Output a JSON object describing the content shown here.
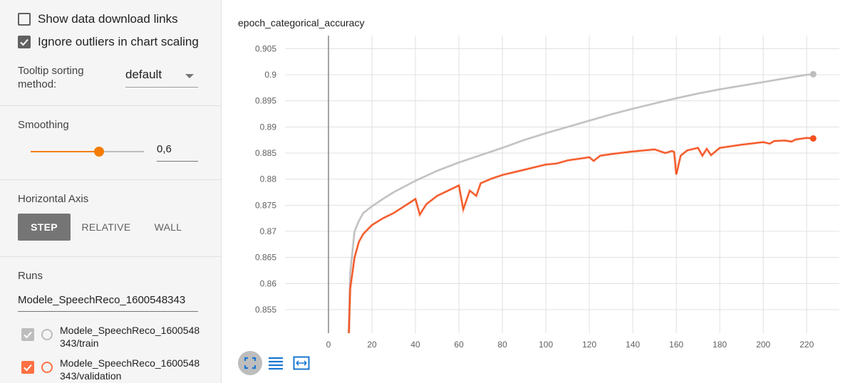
{
  "sidebar": {
    "show_download_links": {
      "label": "Show data download links",
      "checked": false
    },
    "ignore_outliers": {
      "label": "Ignore outliers in chart scaling",
      "checked": true
    },
    "tooltip_sorting": {
      "label": "Tooltip sorting method:",
      "value": "default"
    },
    "smoothing": {
      "title": "Smoothing",
      "value": "0,6",
      "level": 0.6
    },
    "horizontal_axis": {
      "title": "Horizontal Axis",
      "options": [
        "STEP",
        "RELATIVE",
        "WALL"
      ],
      "selected": "STEP"
    },
    "runs": {
      "title": "Runs",
      "filter": "Modele_SpeechReco_1600548343",
      "items": [
        {
          "label": "Modele_SpeechReco_1600548343/train",
          "checked": true,
          "color": "#9e9e9e"
        },
        {
          "label": "Modele_SpeechReco_1600548343/validation",
          "checked": true,
          "color": "#ff7043"
        }
      ]
    }
  },
  "chart": {
    "title": "epoch_categorical_accuracy"
  },
  "icons": {
    "fullscreen": "fullscreen-icon",
    "lines": "toggle-y-log-icon",
    "fit": "fit-domain-icon"
  },
  "chart_data": {
    "type": "line",
    "title": "epoch_categorical_accuracy",
    "xlabel": "",
    "ylabel": "",
    "xlim": [
      -20,
      235
    ],
    "ylim": [
      0.8505,
      0.9075
    ],
    "x_ticks": [
      0,
      20,
      40,
      60,
      80,
      100,
      120,
      140,
      160,
      180,
      200,
      220
    ],
    "y_ticks": [
      0.855,
      0.86,
      0.865,
      0.87,
      0.875,
      0.88,
      0.885,
      0.89,
      0.895,
      0.9,
      0.905
    ],
    "y_tick_labels": [
      "0.855",
      "0.86",
      "0.865",
      "0.87",
      "0.875",
      "0.88",
      "0.885",
      "0.89",
      "0.895",
      "0.9",
      "0.905"
    ],
    "grid": true,
    "series": [
      {
        "color": "#bdbdbd",
        "x": [
          9,
          10,
          12,
          14,
          16,
          20,
          25,
          30,
          40,
          50,
          60,
          70,
          80,
          90,
          100,
          110,
          120,
          130,
          140,
          150,
          160,
          170,
          180,
          190,
          200,
          210,
          220,
          223
        ],
        "y": [
          0.845,
          0.862,
          0.87,
          0.872,
          0.8735,
          0.8748,
          0.8762,
          0.8775,
          0.8797,
          0.8816,
          0.8832,
          0.8846,
          0.886,
          0.8875,
          0.8888,
          0.89,
          0.8912,
          0.8924,
          0.8935,
          0.8945,
          0.8955,
          0.8964,
          0.8972,
          0.8979,
          0.8986,
          0.8993,
          0.9,
          0.9001
        ]
      },
      {
        "color": "#f4511e",
        "x": [
          9,
          10,
          12,
          14,
          16,
          20,
          25,
          30,
          40,
          42,
          45,
          50,
          60,
          62,
          65,
          68,
          70,
          75,
          80,
          90,
          100,
          105,
          110,
          115,
          120,
          122,
          125,
          130,
          140,
          150,
          155,
          158,
          159,
          160,
          162,
          165,
          170,
          172,
          174,
          176,
          180,
          190,
          200,
          203,
          205,
          210,
          213,
          215,
          220,
          223
        ],
        "y": [
          0.845,
          0.859,
          0.865,
          0.868,
          0.8695,
          0.8712,
          0.8725,
          0.8735,
          0.8762,
          0.8732,
          0.8752,
          0.8768,
          0.8788,
          0.8742,
          0.8778,
          0.8768,
          0.8792,
          0.8801,
          0.8808,
          0.8818,
          0.8828,
          0.883,
          0.8836,
          0.8839,
          0.8842,
          0.8835,
          0.8845,
          0.8848,
          0.8853,
          0.8857,
          0.885,
          0.8854,
          0.8852,
          0.8809,
          0.8845,
          0.8855,
          0.886,
          0.8845,
          0.8858,
          0.8846,
          0.886,
          0.8866,
          0.8871,
          0.8868,
          0.8873,
          0.8874,
          0.8872,
          0.8876,
          0.8879,
          0.8878
        ]
      }
    ]
  }
}
